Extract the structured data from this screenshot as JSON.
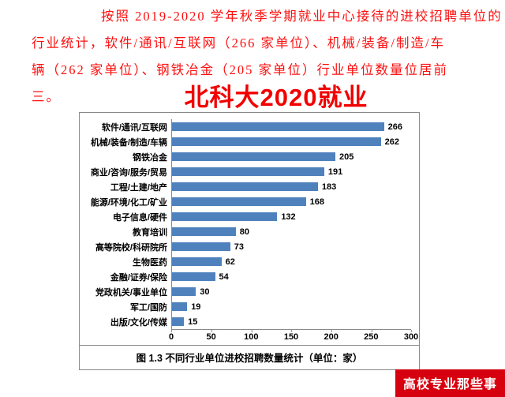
{
  "paragraph": {
    "color": "#fe1010",
    "lines": [
      "按照 2019-2020 学年秋季学期就业中心接待的进校招聘单位的",
      "行业统计，软件/通讯/互联网（266 家单位）、机械/装备/制造/车",
      "辆（262 家单位）、钢铁冶金（205 家单位）行业单位数量位居前",
      "三。"
    ]
  },
  "overlay_title": "北科大2020就业",
  "chart_data": {
    "type": "bar",
    "orientation": "horizontal",
    "categories": [
      "软件/通讯/互联网",
      "机械/装备/制造/车辆",
      "钢铁冶金",
      "商业/咨询/服务/贸易",
      "工程/土建/地产",
      "能源/环境/化工/矿业",
      "电子信息/硬件",
      "教育培训",
      "高等院校/科研院所",
      "生物医药",
      "金融/证券/保险",
      "党政机关/事业单位",
      "军工/国防",
      "出版/文化/传媒"
    ],
    "values": [
      266,
      262,
      205,
      191,
      183,
      168,
      132,
      80,
      73,
      62,
      54,
      30,
      19,
      15
    ],
    "xlim": [
      0,
      300
    ],
    "x_ticks": [
      "0",
      "50",
      "100",
      "150",
      "200",
      "250",
      "300"
    ],
    "bar_color": "#4f81bd",
    "grid": false,
    "legend": "none",
    "title": "",
    "xlabel": "",
    "ylabel": ""
  },
  "caption": "图 1.3  不同行业单位进校招聘数量统计（单位：家）",
  "badge": {
    "text": "高校专业那些事",
    "bg": "#d7000f"
  }
}
